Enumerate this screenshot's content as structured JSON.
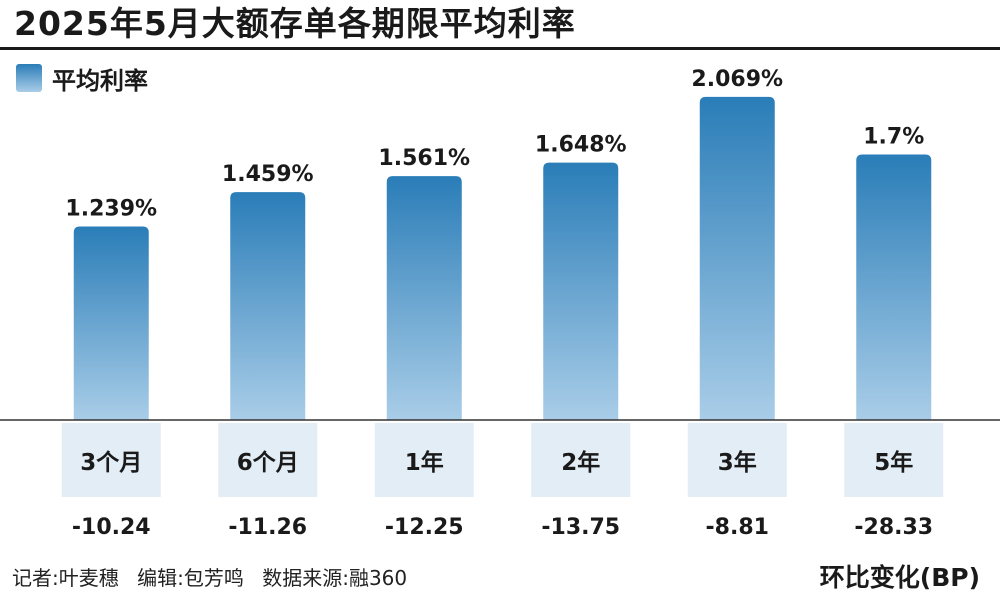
{
  "title": "2025年5月大额存单各期限平均利率",
  "legend": {
    "label": "平均利率"
  },
  "footer": {
    "reporter": "记者:叶麦穗",
    "editor": "编辑:包芳鸣",
    "source": "数据来源:融360"
  },
  "change_label": "环比变化(BP)",
  "colors": {
    "bar_top": "#2a7db8",
    "bar_bottom": "#a9cde8",
    "category_box": "#e3edf6",
    "text": "#1a1a1a"
  },
  "chart_data": {
    "type": "bar",
    "categories": [
      "3个月",
      "6个月",
      "1年",
      "2年",
      "3年",
      "5年"
    ],
    "series": [
      {
        "name": "平均利率",
        "values": [
          1.239,
          1.459,
          1.561,
          1.648,
          2.069,
          1.7
        ],
        "value_labels": [
          "1.239%",
          "1.459%",
          "1.561%",
          "1.648%",
          "2.069%",
          "1.7%"
        ]
      }
    ],
    "changes": [
      -10.24,
      -11.26,
      -12.25,
      -13.75,
      -8.81,
      -28.33
    ],
    "change_labels": [
      "-10.24",
      "-11.26",
      "-12.25",
      "-13.75",
      "-8.81",
      "-28.33"
    ],
    "title": "2025年5月大额存单各期限平均利率",
    "xlabel": "",
    "ylabel": "",
    "ylim": [
      0.0,
      2.2
    ],
    "grid": false,
    "legend_position": "top-left"
  }
}
